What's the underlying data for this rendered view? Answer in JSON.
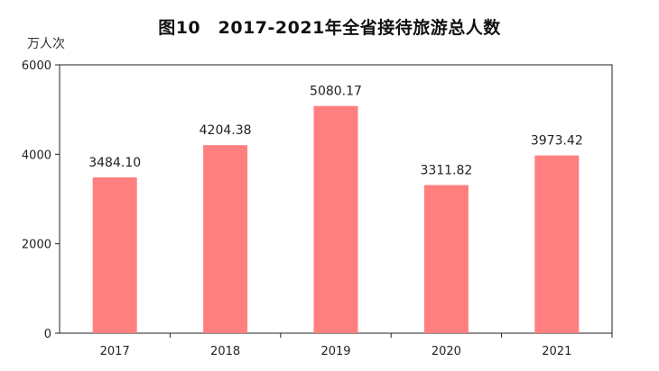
{
  "title": "图10　2017-2021年全省接待旅游总人数",
  "unit": "万人次",
  "colors": {
    "bar": "#FF7F7F",
    "axis": "#222222"
  },
  "chart_data": {
    "type": "bar",
    "title": "图10　2017-2021年全省接待旅游总人数",
    "ylabel": "万人次",
    "xlabel": "",
    "categories": [
      "2017",
      "2018",
      "2019",
      "2020",
      "2021"
    ],
    "values": [
      3484.1,
      4204.38,
      5080.17,
      3311.82,
      3973.42
    ],
    "value_labels": [
      "3484.10",
      "4204.38",
      "5080.17",
      "3311.82",
      "3973.42"
    ],
    "ylim": [
      0,
      6000
    ],
    "yticks": [
      0,
      2000,
      4000,
      6000
    ],
    "grid": false,
    "legend": "none"
  }
}
